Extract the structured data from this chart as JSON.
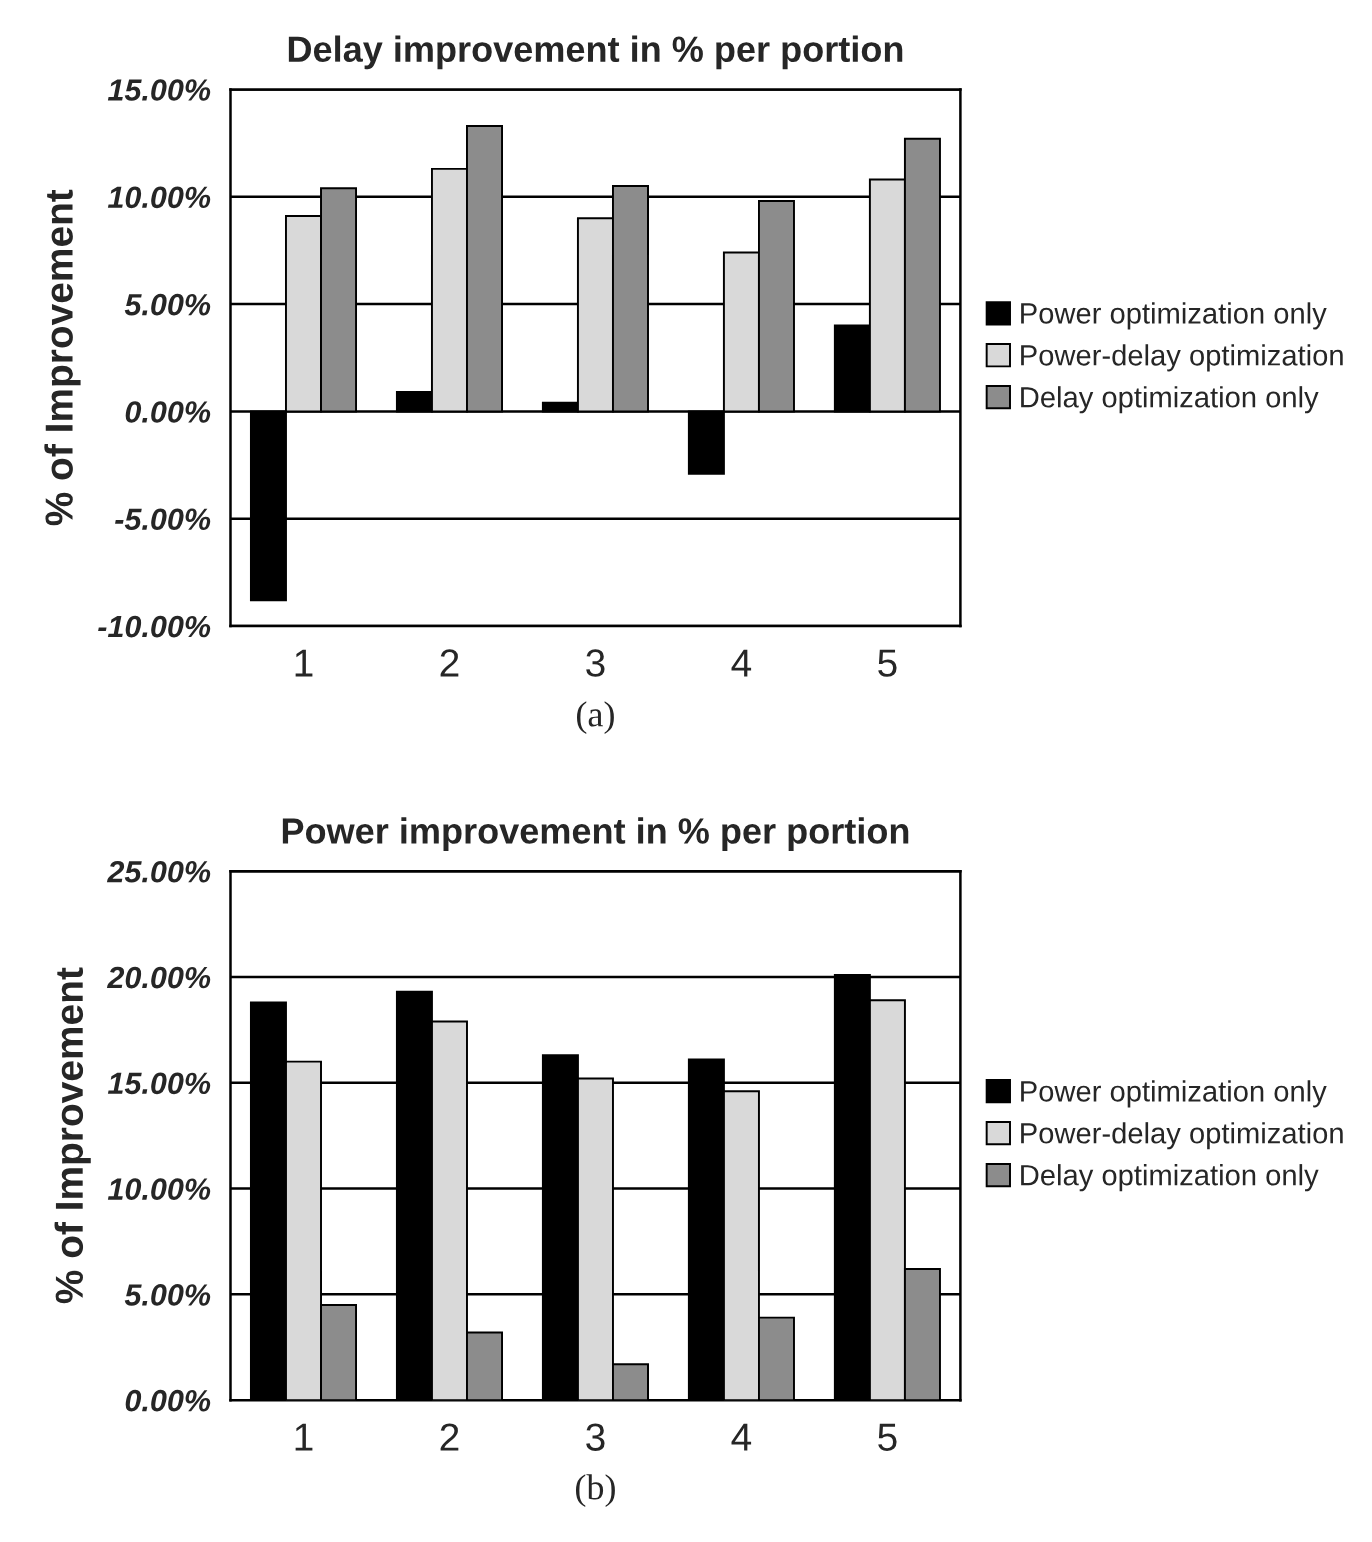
{
  "chart_data": [
    {
      "type": "bar",
      "title": "Delay improvement in % per portion",
      "ylabel": "% of Improvement",
      "categories": [
        "1",
        "2",
        "3",
        "4",
        "5"
      ],
      "series": [
        {
          "name": "Power optimization only",
          "color": "#000000",
          "values": [
            -8.8,
            0.9,
            0.4,
            -2.9,
            4.0
          ]
        },
        {
          "name": "Power-delay optimization",
          "color": "#d9d9d9",
          "values": [
            9.1,
            11.3,
            9.0,
            7.4,
            10.8
          ]
        },
        {
          "name": "Delay optimization only",
          "color": "#8c8c8c",
          "values": [
            10.4,
            13.3,
            10.5,
            9.8,
            12.7
          ]
        }
      ],
      "ylim": [
        -10,
        15
      ],
      "yticks": [
        {
          "value": -10,
          "label": "-10.00%"
        },
        {
          "value": -5,
          "label": "-5.00%"
        },
        {
          "value": 0,
          "label": "0.00%"
        },
        {
          "value": 5,
          "label": "5.00%"
        },
        {
          "value": 10,
          "label": "10.00%"
        },
        {
          "value": 15,
          "label": "15.00%"
        }
      ],
      "grid": "y",
      "legend": "right",
      "annotations": [
        "(a)"
      ]
    },
    {
      "type": "bar",
      "title": "Power improvement in % per portion",
      "ylabel": "% of Improvement",
      "categories": [
        "1",
        "2",
        "3",
        "4",
        "5"
      ],
      "series": [
        {
          "name": "Power optimization only",
          "color": "#000000",
          "values": [
            18.8,
            19.3,
            16.3,
            16.1,
            20.1
          ]
        },
        {
          "name": "Power-delay optimization",
          "color": "#d9d9d9",
          "values": [
            16.0,
            17.9,
            15.2,
            14.6,
            18.9
          ]
        },
        {
          "name": "Delay optimization only",
          "color": "#8c8c8c",
          "values": [
            4.5,
            3.2,
            1.7,
            3.9,
            6.2
          ]
        }
      ],
      "ylim": [
        0,
        25
      ],
      "yticks": [
        {
          "value": 0,
          "label": "0.00%"
        },
        {
          "value": 5,
          "label": "5.00%"
        },
        {
          "value": 10,
          "label": "10.00%"
        },
        {
          "value": 15,
          "label": "15.00%"
        },
        {
          "value": 20,
          "label": "20.00%"
        },
        {
          "value": 25,
          "label": "25.00%"
        }
      ],
      "grid": "y",
      "legend": "right",
      "annotations": [
        "(b)"
      ]
    }
  ]
}
